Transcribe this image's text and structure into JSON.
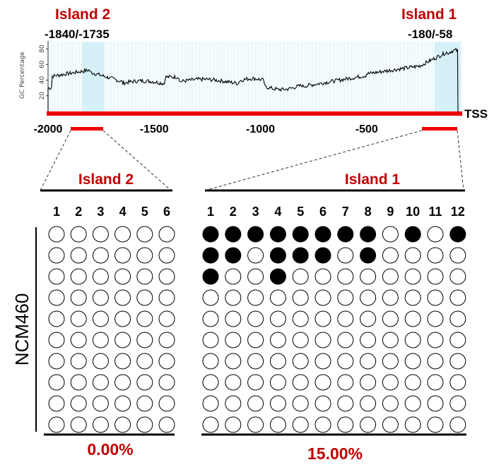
{
  "top_labels": {
    "island2_title": "Island 2",
    "island2_range": "-1840/-1735",
    "island1_title": "Island 1",
    "island1_range": "-180/-58",
    "tss": "TSS"
  },
  "gc_plot": {
    "ylabel": "GC Percentage",
    "yticks": [
      "20",
      "40",
      "60",
      "80"
    ],
    "xticks": [
      "-2000",
      "-1500",
      "-1000",
      "-500"
    ],
    "x_range": [
      -2000,
      -50
    ],
    "y_range": [
      0,
      90
    ],
    "highlight_regions": [
      [
        -1840,
        -1735
      ],
      [
        -180,
        -58
      ]
    ],
    "line_color": "#000000",
    "highlight_color": "#d6f0f8",
    "baseline_color": "#ee0000"
  },
  "panel_island2": {
    "title": "Island 2",
    "columns": [
      "1",
      "2",
      "3",
      "4",
      "5",
      "6"
    ],
    "rows": 10,
    "methylated": [],
    "percent": "0.00%"
  },
  "panel_island1": {
    "title": "Island 1",
    "columns": [
      "1",
      "2",
      "3",
      "4",
      "5",
      "6",
      "7",
      "8",
      "9",
      "10",
      "11",
      "12"
    ],
    "rows": 10,
    "methylated": [
      [
        1,
        1,
        1,
        1,
        1,
        1,
        1,
        1,
        0,
        1,
        0,
        1
      ],
      [
        1,
        1,
        0,
        1,
        1,
        1,
        0,
        1,
        0,
        0,
        0,
        0
      ],
      [
        1,
        0,
        0,
        1,
        0,
        0,
        0,
        0,
        0,
        0,
        0,
        0
      ]
    ],
    "percent": "15.00%"
  },
  "sample_label": "NCM460",
  "colors": {
    "accent_red": "#c00000",
    "bar_red": "#ee0000",
    "filled_circle": "#000000",
    "empty_circle": "#ffffff"
  }
}
